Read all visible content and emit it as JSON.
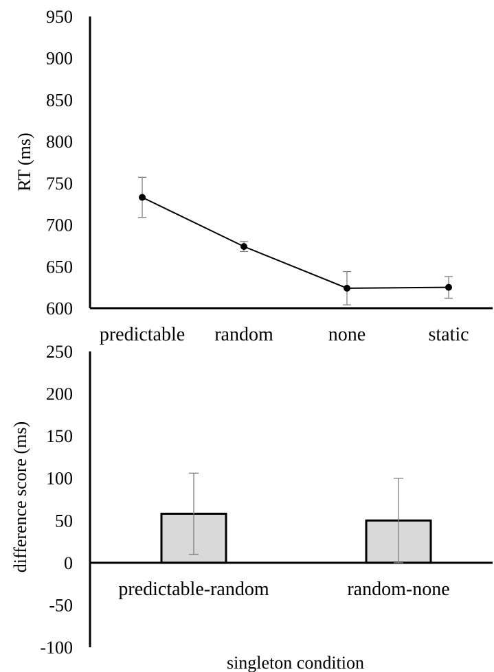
{
  "chart_data": [
    {
      "type": "line",
      "categories": [
        "predictable",
        "random",
        "none",
        "static"
      ],
      "series": [
        {
          "values": [
            733,
            674,
            624,
            625
          ],
          "error": [
            24,
            6,
            20,
            13
          ]
        }
      ],
      "ylabel": "RT (ms)",
      "xlabel": "",
      "ylim": [
        600,
        950
      ],
      "yticks": [
        600,
        650,
        700,
        750,
        800,
        850,
        900,
        950
      ],
      "grid": false,
      "marker_color": "#000000"
    },
    {
      "type": "bar",
      "categories": [
        "predictable-random",
        "random-none"
      ],
      "values": [
        58,
        50
      ],
      "error": [
        48,
        50
      ],
      "ylabel": "difference score (ms)",
      "xlabel": "singleton condition",
      "ylim": [
        -100,
        250
      ],
      "yticks": [
        -100,
        -50,
        0,
        50,
        100,
        150,
        200,
        250
      ],
      "grid": false,
      "bar_color": "#d9d9d9",
      "bar_edge_color": "#000000"
    }
  ]
}
